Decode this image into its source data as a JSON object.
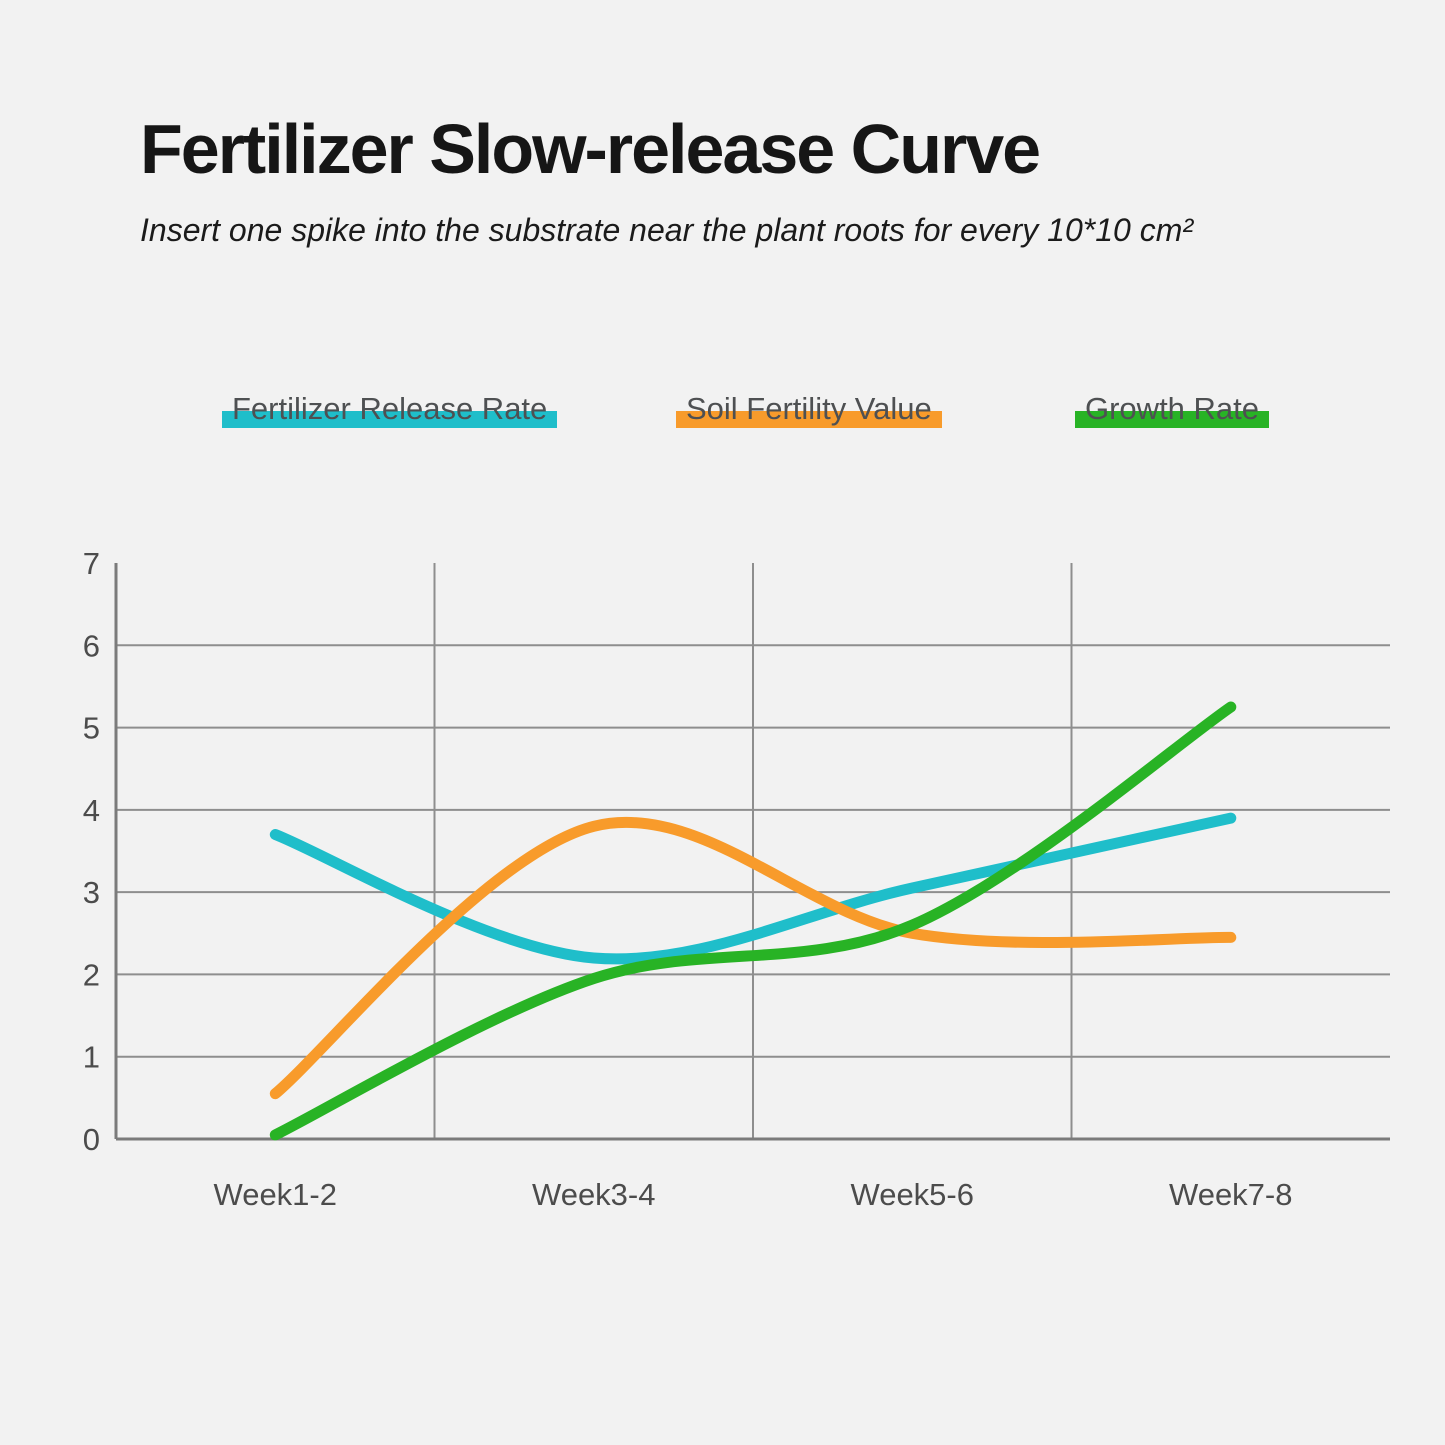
{
  "page": {
    "title": "Fertilizer Slow-release Curve",
    "subtitle": "Insert one spike into the substrate near the plant roots for every 10*10 cm²",
    "background_color": "#f2f2f2"
  },
  "axis_style": {
    "grid_color": "#8e8e8e",
    "axis_color": "#7b7b7b",
    "tick_color": "#4c4c4c"
  },
  "chart_data": {
    "type": "line",
    "curve": "smooth",
    "categories": [
      "Week1-2",
      "Week3-4",
      "Week5-6",
      "Week7-8"
    ],
    "series": [
      {
        "name": "Fertilizer Release Rate",
        "color": "#1fbeca",
        "values": [
          3.7,
          2.2,
          3.05,
          3.9
        ]
      },
      {
        "name": "Soil Fertility Value",
        "color": "#f89b2b",
        "values": [
          0.55,
          3.8,
          2.5,
          2.45
        ]
      },
      {
        "name": "Growth Rate",
        "color": "#28b325",
        "values": [
          0.05,
          1.95,
          2.6,
          5.25
        ]
      }
    ],
    "title": "Fertilizer Slow-release Curve",
    "xlabel": "",
    "ylabel": "",
    "ylim": [
      0,
      7
    ],
    "y_ticks": [
      0,
      1,
      2,
      3,
      4,
      5,
      6,
      7
    ],
    "grid": true,
    "legend_position": "top"
  }
}
